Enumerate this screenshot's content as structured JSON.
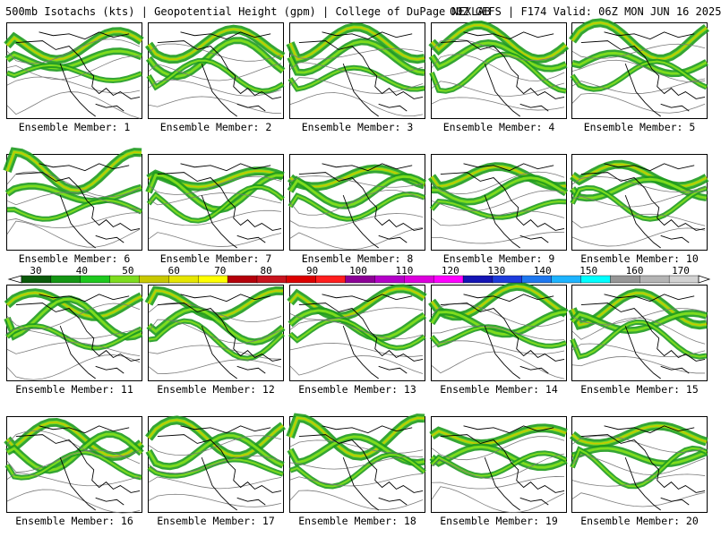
{
  "header": {
    "left_title": "500mb Isotachs (kts) | Geopotential Height (gpm) | College of DuPage NEXLAB",
    "right_title": "00Z GEFS | F174 Valid: 06Z MON JUN 16 2025"
  },
  "panels": [
    {
      "label": "Ensemble Member: 1"
    },
    {
      "label": "Ensemble Member: 2"
    },
    {
      "label": "Ensemble Member: 3"
    },
    {
      "label": "Ensemble Member: 4"
    },
    {
      "label": "Ensemble Member: 5"
    },
    {
      "label": "Ensemble Member: 6"
    },
    {
      "label": "Ensemble Member: 7"
    },
    {
      "label": "Ensemble Member: 8"
    },
    {
      "label": "Ensemble Member: 9"
    },
    {
      "label": "Ensemble Member: 10"
    },
    {
      "label": "Ensemble Member: 11"
    },
    {
      "label": "Ensemble Member: 12"
    },
    {
      "label": "Ensemble Member: 13"
    },
    {
      "label": "Ensemble Member: 14"
    },
    {
      "label": "Ensemble Member: 15"
    },
    {
      "label": "Ensemble Member: 16"
    },
    {
      "label": "Ensemble Member: 17"
    },
    {
      "label": "Ensemble Member: 18"
    },
    {
      "label": "Ensemble Member: 19"
    },
    {
      "label": "Ensemble Member: 20"
    }
  ],
  "colorbar": {
    "ticks": [
      "30",
      "40",
      "50",
      "60",
      "70",
      "80",
      "90",
      "100",
      "110",
      "120",
      "130",
      "140",
      "150",
      "160",
      "170"
    ],
    "colors": [
      "#0b5a0b",
      "#149614",
      "#1ec81e",
      "#7ddc1e",
      "#c8c800",
      "#e6e600",
      "#ffff00",
      "#b4000a",
      "#c8141e",
      "#dc0000",
      "#ff1e1e",
      "#8c0096",
      "#b400c8",
      "#dc00dc",
      "#ff00ff",
      "#1414b4",
      "#1e3cdc",
      "#1e78f0",
      "#1eb4ff",
      "#00ffff",
      "#969696",
      "#b4b4b4",
      "#d2d2d2"
    ]
  }
}
